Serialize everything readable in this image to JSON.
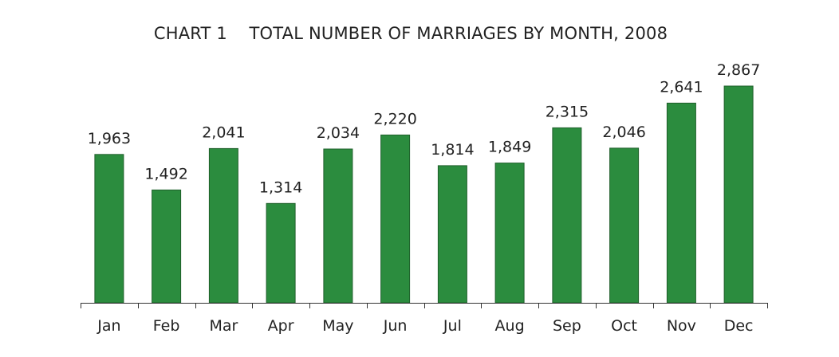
{
  "chart_data": {
    "type": "bar",
    "title": "CHART 1    TOTAL NUMBER OF MARRIAGES BY MONTH, 2008",
    "xlabel": "",
    "ylabel": "",
    "categories": [
      "Jan",
      "Feb",
      "Mar",
      "Apr",
      "May",
      "Jun",
      "Jul",
      "Aug",
      "Sep",
      "Oct",
      "Nov",
      "Dec"
    ],
    "values": [
      1963,
      1492,
      2041,
      1314,
      2034,
      2220,
      1814,
      1849,
      2315,
      2046,
      2641,
      2867
    ],
    "value_labels": [
      "1,963",
      "1,492",
      "2,041",
      "1,314",
      "2,034",
      "2,220",
      "1,814",
      "1,849",
      "2,315",
      "2,046",
      "2,641",
      "2,867"
    ],
    "ylim": [
      0,
      2867
    ],
    "grid": false,
    "legend": "none",
    "colors": {
      "bar_fill": "#2b8c3e",
      "bar_stroke": "#1f5f2b",
      "axis": "#333333",
      "text": "#222222"
    }
  }
}
